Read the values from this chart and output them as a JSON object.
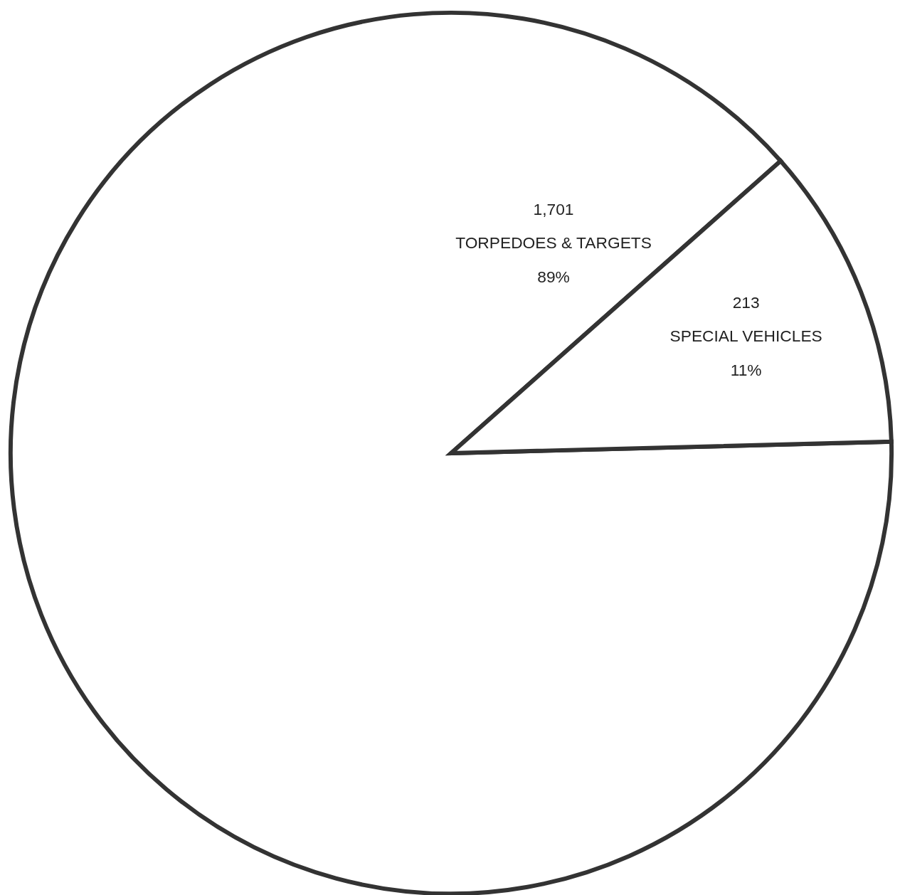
{
  "chart_data": {
    "type": "pie",
    "categories": [
      "TORPEDOES & TARGETS",
      "SPECIAL VEHICLES"
    ],
    "values": [
      1701,
      213
    ],
    "value_labels": [
      "1,701",
      "213"
    ],
    "annotations": [
      "89%",
      "11%"
    ],
    "colors": [
      "#ffffff",
      "#ffffff"
    ],
    "legend": false
  }
}
